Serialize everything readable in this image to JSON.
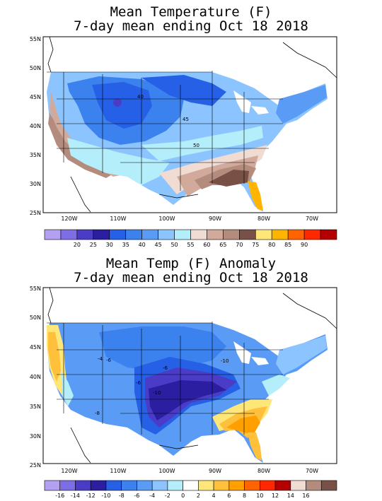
{
  "map1": {
    "title_line1": "Mean Temperature (F)",
    "title_line2": "7-day mean ending Oct 18 2018",
    "lat_labels": [
      "55N",
      "50N",
      "45N",
      "40N",
      "35N",
      "30N",
      "25N"
    ],
    "lon_labels": [
      "120W",
      "110W",
      "100W",
      "90W",
      "80W",
      "70W"
    ],
    "contour_labels": [
      "40",
      "45",
      "50"
    ],
    "legend_labels": [
      "20",
      "25",
      "30",
      "35",
      "40",
      "45",
      "50",
      "55",
      "60",
      "65",
      "70",
      "75",
      "80",
      "85",
      "90"
    ],
    "legend_colors": [
      "#b4a0f0",
      "#7e6ee6",
      "#4b3cc8",
      "#2b1ea0",
      "#2560e6",
      "#3c82ee",
      "#5a9cf5",
      "#8cc4ff",
      "#b4eefa",
      "#f0dcd2",
      "#d2aa9b",
      "#b48c7d",
      "#785046",
      "#ffe678",
      "#ffb400",
      "#ff6400",
      "#ff2800",
      "#b40000"
    ]
  },
  "map2": {
    "title_line1": "Mean Temp (F) Anomaly",
    "title_line2": "7-day mean ending Oct 18 2018",
    "lat_labels": [
      "55N",
      "50N",
      "45N",
      "40N",
      "35N",
      "30N",
      "25N"
    ],
    "lon_labels": [
      "120W",
      "110W",
      "100W",
      "90W",
      "80W",
      "70W"
    ],
    "contour_labels": [
      "-4",
      "-6",
      "-6",
      "-6",
      "-10",
      "-10",
      "-8"
    ],
    "legend_labels": [
      "-16",
      "-14",
      "-12",
      "-10",
      "-8",
      "-6",
      "-4",
      "-2",
      "0",
      "2",
      "4",
      "6",
      "8",
      "10",
      "12",
      "14",
      "16"
    ],
    "legend_colors": [
      "#b4a0f0",
      "#7e6ee6",
      "#4b3cc8",
      "#2b1ea0",
      "#2560e6",
      "#3c82ee",
      "#5a9cf5",
      "#8cc4ff",
      "#b4eefa",
      "#ffffff",
      "#ffe678",
      "#ffc03c",
      "#ffa000",
      "#ff6400",
      "#ff2800",
      "#b40000",
      "#f0dcd2",
      "#b48c7d",
      "#785046"
    ]
  }
}
